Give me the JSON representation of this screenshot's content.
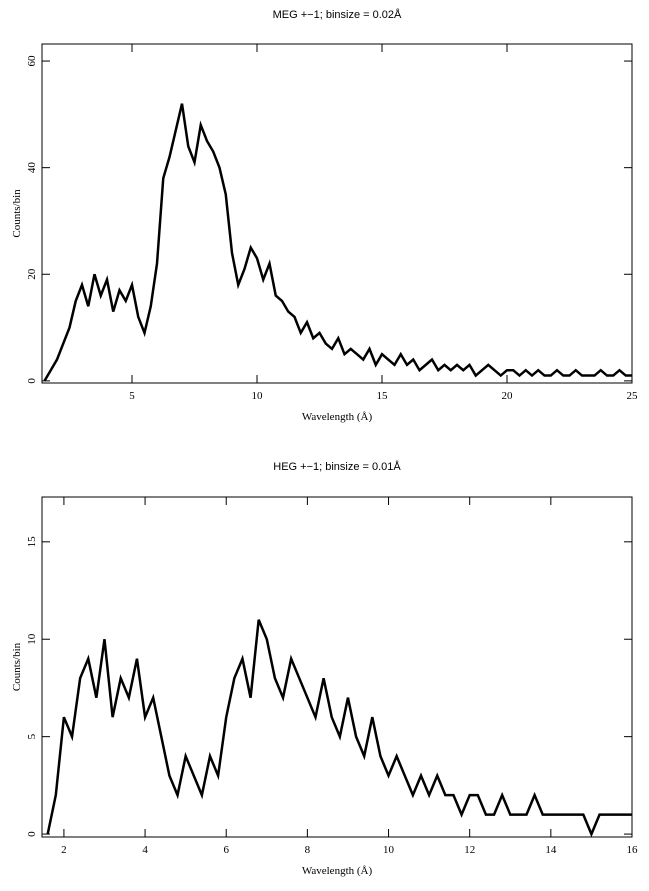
{
  "chart_data": [
    {
      "type": "line",
      "title": "MEG +−1; binsize = 0.02Å",
      "x_label": "Wavelength (Å)",
      "y_label": "Counts/bin",
      "x": [
        1.5,
        1.75,
        2.0,
        2.25,
        2.5,
        2.75,
        3.0,
        3.25,
        3.5,
        3.75,
        4.0,
        4.25,
        4.5,
        4.75,
        5.0,
        5.25,
        5.5,
        5.75,
        6.0,
        6.25,
        6.5,
        6.75,
        7.0,
        7.25,
        7.5,
        7.75,
        8.0,
        8.25,
        8.5,
        8.75,
        9.0,
        9.25,
        9.5,
        9.75,
        10.0,
        10.25,
        10.5,
        10.75,
        11.0,
        11.25,
        11.5,
        11.75,
        12.0,
        12.25,
        12.5,
        12.75,
        13.0,
        13.25,
        13.5,
        13.75,
        14.0,
        14.25,
        14.5,
        14.75,
        15.0,
        15.25,
        15.5,
        15.75,
        16.0,
        16.25,
        16.5,
        16.75,
        17.0,
        17.25,
        17.5,
        17.75,
        18.0,
        18.25,
        18.5,
        18.75,
        19.0,
        19.25,
        19.5,
        19.75,
        20.0,
        20.25,
        20.5,
        20.75,
        21.0,
        21.25,
        21.5,
        21.75,
        22.0,
        22.25,
        22.5,
        22.75,
        23.0,
        23.25,
        23.5,
        23.75,
        24.0,
        24.25,
        24.5,
        24.75,
        25.0
      ],
      "series": [
        {
          "color": "#000000",
          "values": [
            0,
            2,
            4,
            7,
            10,
            15,
            18,
            14,
            20,
            16,
            19,
            13,
            17,
            15,
            18,
            12,
            9,
            14,
            22,
            38,
            42,
            47,
            52,
            44,
            41,
            48,
            45,
            43,
            40,
            35,
            24,
            18,
            21,
            25,
            23,
            19,
            22,
            16,
            15,
            13,
            12,
            9,
            11,
            8,
            9,
            7,
            6,
            8,
            5,
            6,
            5,
            4,
            6,
            3,
            5,
            4,
            3,
            5,
            3,
            4,
            2,
            3,
            4,
            2,
            3,
            2,
            3,
            2,
            3,
            1,
            2,
            3,
            2,
            1,
            2,
            2,
            1,
            2,
            1,
            2,
            1,
            1,
            2,
            1,
            1,
            2,
            1,
            1,
            1,
            2,
            1,
            1,
            2,
            1,
            1
          ]
        }
      ],
      "xlim": [
        1.4,
        25
      ],
      "ylim": [
        -0.4,
        63.2
      ],
      "xticks": [
        5,
        10,
        15,
        20,
        25
      ],
      "yticks": [
        0,
        20,
        40,
        60
      ]
    },
    {
      "type": "line",
      "title": "HEG +−1; binsize = 0.01Å",
      "x_label": "Wavelength (Å)",
      "y_label": "Counts/bin",
      "x": [
        1.6,
        1.8,
        2.0,
        2.2,
        2.4,
        2.6,
        2.8,
        3.0,
        3.2,
        3.4,
        3.6,
        3.8,
        4.0,
        4.2,
        4.4,
        4.6,
        4.8,
        5.0,
        5.2,
        5.4,
        5.6,
        5.8,
        6.0,
        6.2,
        6.4,
        6.6,
        6.8,
        7.0,
        7.2,
        7.4,
        7.6,
        7.8,
        8.0,
        8.2,
        8.4,
        8.6,
        8.8,
        9.0,
        9.2,
        9.4,
        9.6,
        9.8,
        10.0,
        10.2,
        10.4,
        10.6,
        10.8,
        11.0,
        11.2,
        11.4,
        11.6,
        11.8,
        12.0,
        12.2,
        12.4,
        12.6,
        12.8,
        13.0,
        13.2,
        13.4,
        13.6,
        13.8,
        14.0,
        14.2,
        14.4,
        14.6,
        14.8,
        15.0,
        15.2,
        15.4,
        15.6,
        15.8,
        16.0
      ],
      "series": [
        {
          "color": "#000000",
          "values": [
            0,
            2,
            6,
            5,
            8,
            9,
            7,
            10,
            6,
            8,
            7,
            9,
            6,
            7,
            5,
            3,
            2,
            4,
            3,
            2,
            4,
            3,
            6,
            8,
            9,
            7,
            11,
            10,
            8,
            7,
            9,
            8,
            7,
            6,
            8,
            6,
            5,
            7,
            5,
            4,
            6,
            4,
            3,
            4,
            3,
            2,
            3,
            2,
            3,
            2,
            2,
            1,
            2,
            2,
            1,
            1,
            2,
            1,
            1,
            1,
            2,
            1,
            1,
            1,
            1,
            1,
            1,
            0,
            1,
            1,
            1,
            1,
            1
          ]
        }
      ],
      "xlim": [
        1.46,
        16
      ],
      "ylim": [
        -0.15,
        17.3
      ],
      "xticks": [
        2,
        4,
        6,
        8,
        10,
        12,
        14,
        16
      ],
      "yticks": [
        0,
        5,
        10,
        15
      ]
    }
  ]
}
